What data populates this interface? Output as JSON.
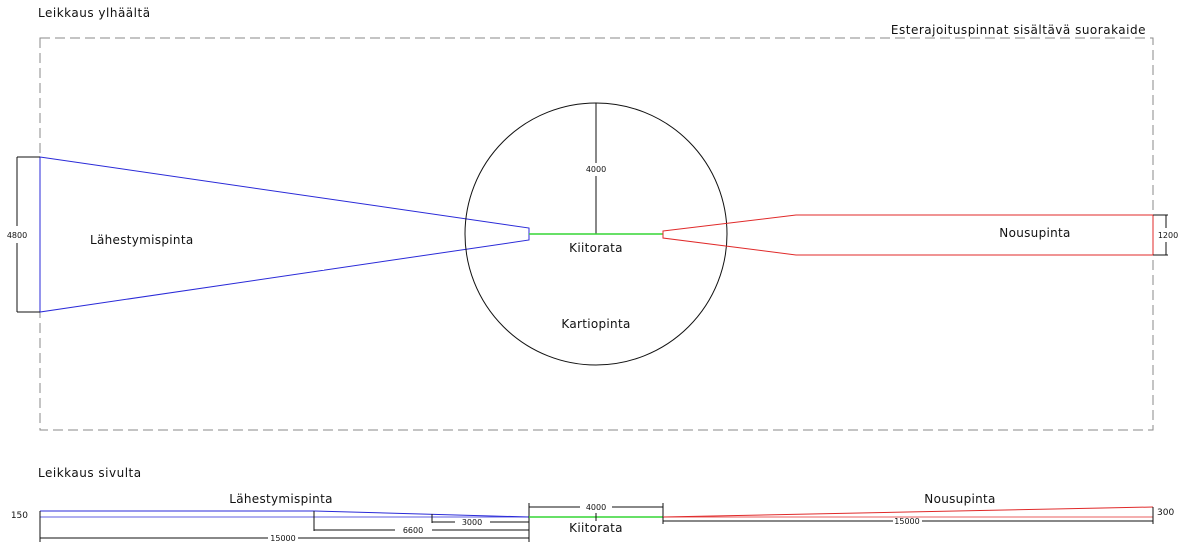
{
  "top_view": {
    "title": "Leikkaus ylhäältä",
    "rectangle_label": "Esterajoituspinnat sisältävä suorakaide",
    "approach_label": "Lähestymispinta",
    "approach_width": "4800",
    "circle_radius": "4000",
    "runway_label": "Kiitorata",
    "conical_label": "Kartiopinta",
    "takeoff_label": "Nousupinta",
    "takeoff_width": "1200"
  },
  "side_view": {
    "title": "Leikkaus sivulta",
    "approach_label": "Lähestymispinta",
    "approach_height": "150",
    "dim_3000": "3000",
    "dim_6600": "6600",
    "dim_15000_left": "15000",
    "runway_length": "4000",
    "runway_label": "Kiitorata",
    "takeoff_label": "Nousupinta",
    "takeoff_height": "300",
    "dim_15000_right": "15000"
  },
  "colors": {
    "approach": "#2a2ad8",
    "runway": "#35d635",
    "takeoff": "#e02a2a",
    "lines": "#111111",
    "dashed": "#8a8a8a"
  }
}
